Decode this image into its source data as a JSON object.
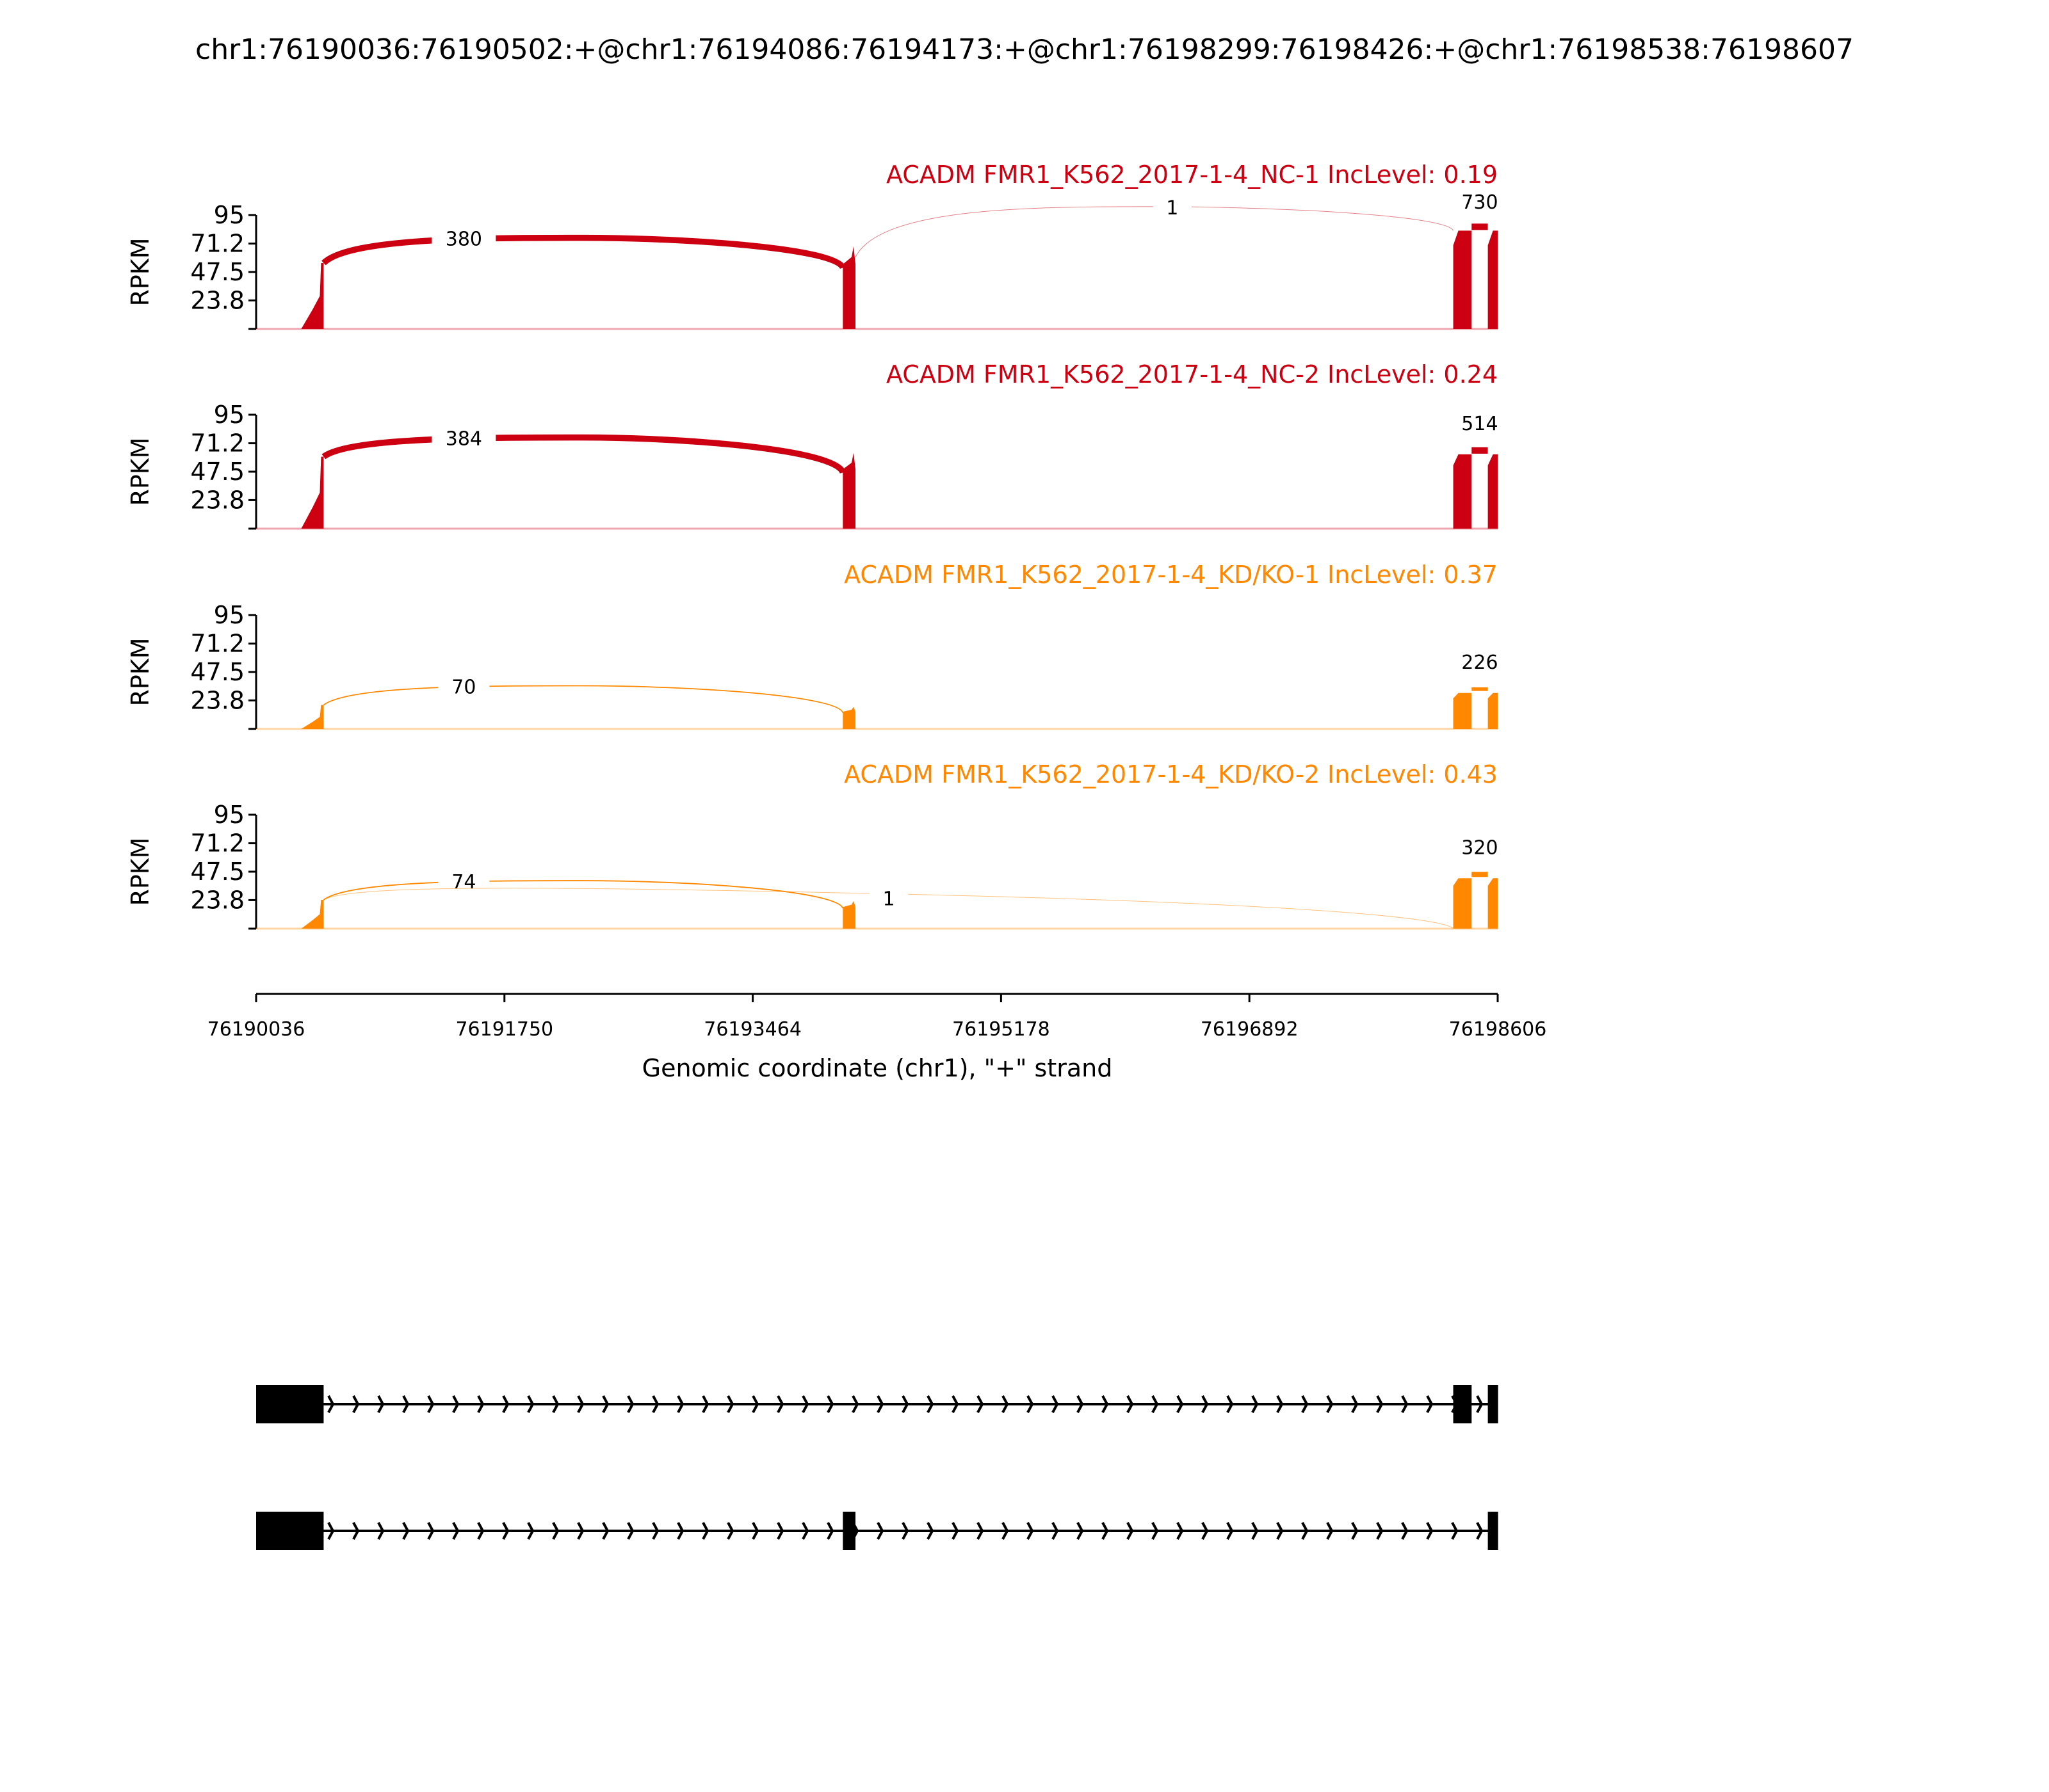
{
  "chart_data": {
    "type": "area",
    "title": "chr1:76190036:76190502:+@chr1:76194086:76194173:+@chr1:76198299:76198426:+@chr1:76198538:76198607",
    "xlabel": "Genomic coordinate (chr1), \"+\" strand",
    "ylabel": "RPKM",
    "xlim": [
      76190036,
      76198606
    ],
    "ylim": [
      0,
      95
    ],
    "xticks": [
      "76190036",
      "76191750",
      "76193464",
      "76195178",
      "76196892",
      "76198606"
    ],
    "yticks": [
      "23.8",
      "47.5",
      "71.2",
      "95"
    ],
    "exons": [
      {
        "start": 76190036,
        "end": 76190502
      },
      {
        "start": 76194086,
        "end": 76194173
      },
      {
        "start": 76198299,
        "end": 76198426
      },
      {
        "start": 76198538,
        "end": 76198607
      }
    ],
    "panels": [
      {
        "label": "ACADM FMR1_K562_2017-1-4_NC-1 IncLevel: 0.19",
        "color": "#cc0011",
        "coverage": [
          55,
          60,
          82,
          82
        ],
        "junctions": [
          {
            "from": 76190502,
            "to": 76194086,
            "count": "380",
            "weight": 380,
            "kind": "arc"
          },
          {
            "from": 76194173,
            "to": 76198299,
            "count": "1",
            "weight": 1,
            "kind": "arc"
          },
          {
            "from": 76198426,
            "to": 76198538,
            "count": "730",
            "weight": 730,
            "kind": "top"
          }
        ]
      },
      {
        "label": "ACADM FMR1_K562_2017-1-4_NC-2 IncLevel: 0.24",
        "color": "#cc0011",
        "coverage": [
          60,
          55,
          62,
          62
        ],
        "junctions": [
          {
            "from": 76190502,
            "to": 76194086,
            "count": "384",
            "weight": 384,
            "kind": "arc"
          },
          {
            "from": 76198426,
            "to": 76198538,
            "count": "514",
            "weight": 514,
            "kind": "top"
          }
        ]
      },
      {
        "label": "ACADM FMR1_K562_2017-1-4_KD/KO-1 IncLevel: 0.37",
        "color": "#ff8800",
        "coverage": [
          20,
          16,
          30,
          30
        ],
        "junctions": [
          {
            "from": 76190502,
            "to": 76194086,
            "count": "70",
            "weight": 70,
            "kind": "arc"
          },
          {
            "from": 76198426,
            "to": 76198538,
            "count": "226",
            "weight": 226,
            "kind": "top"
          }
        ]
      },
      {
        "label": "ACADM FMR1_K562_2017-1-4_KD/KO-2 IncLevel: 0.43",
        "color": "#ff8800",
        "coverage": [
          24,
          20,
          42,
          42
        ],
        "junctions": [
          {
            "from": 76190502,
            "to": 76194086,
            "count": "74",
            "weight": 74,
            "kind": "arc"
          },
          {
            "from": 76190502,
            "to": 76198299,
            "count": "1",
            "weight": 1,
            "kind": "down"
          },
          {
            "from": 76198426,
            "to": 76198538,
            "count": "320",
            "weight": 320,
            "kind": "top"
          }
        ]
      }
    ],
    "transcripts": [
      {
        "exons": [
          0,
          2,
          3
        ]
      },
      {
        "exons": [
          0,
          1,
          3
        ]
      }
    ]
  }
}
